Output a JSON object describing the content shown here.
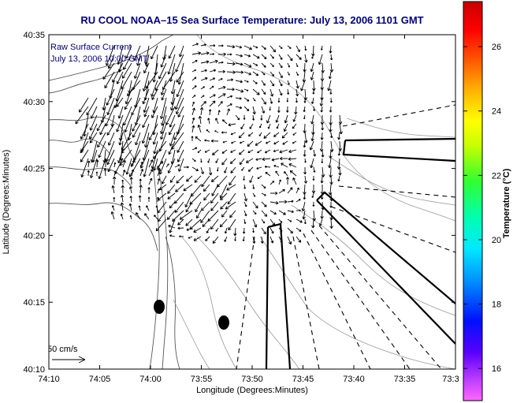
{
  "title": "RU COOL  NOAA–15  Sea Surface Temperature:  July 13, 2006 1101 GMT",
  "inset_label_line1": "Raw Surface Current",
  "inset_label_line2": "July 13, 2006 10:00 GMT",
  "scale_label": "50 cm/s",
  "chart_data": {
    "type": "map",
    "xlabel": "Longitude (Degrees:Minutes)",
    "ylabel": "Latitude (Degrees:Minutes)",
    "x_ticks": [
      "74:10",
      "74:05",
      "74:00",
      "73:55",
      "73:50",
      "73:45",
      "73:40",
      "73:35",
      "73:3"
    ],
    "y_ticks": [
      "40:35",
      "40:30",
      "40:25",
      "40:20",
      "40:15",
      "40:10"
    ],
    "colorbar": {
      "label": "Temperature (°C)",
      "ticks": [
        "26",
        "24",
        "22",
        "20",
        "18",
        "16"
      ],
      "range": [
        15,
        27.4
      ]
    }
  },
  "colors": {
    "title": "#000080",
    "inset_label": "#000080",
    "axes": "#000000",
    "contour": "#888888"
  }
}
